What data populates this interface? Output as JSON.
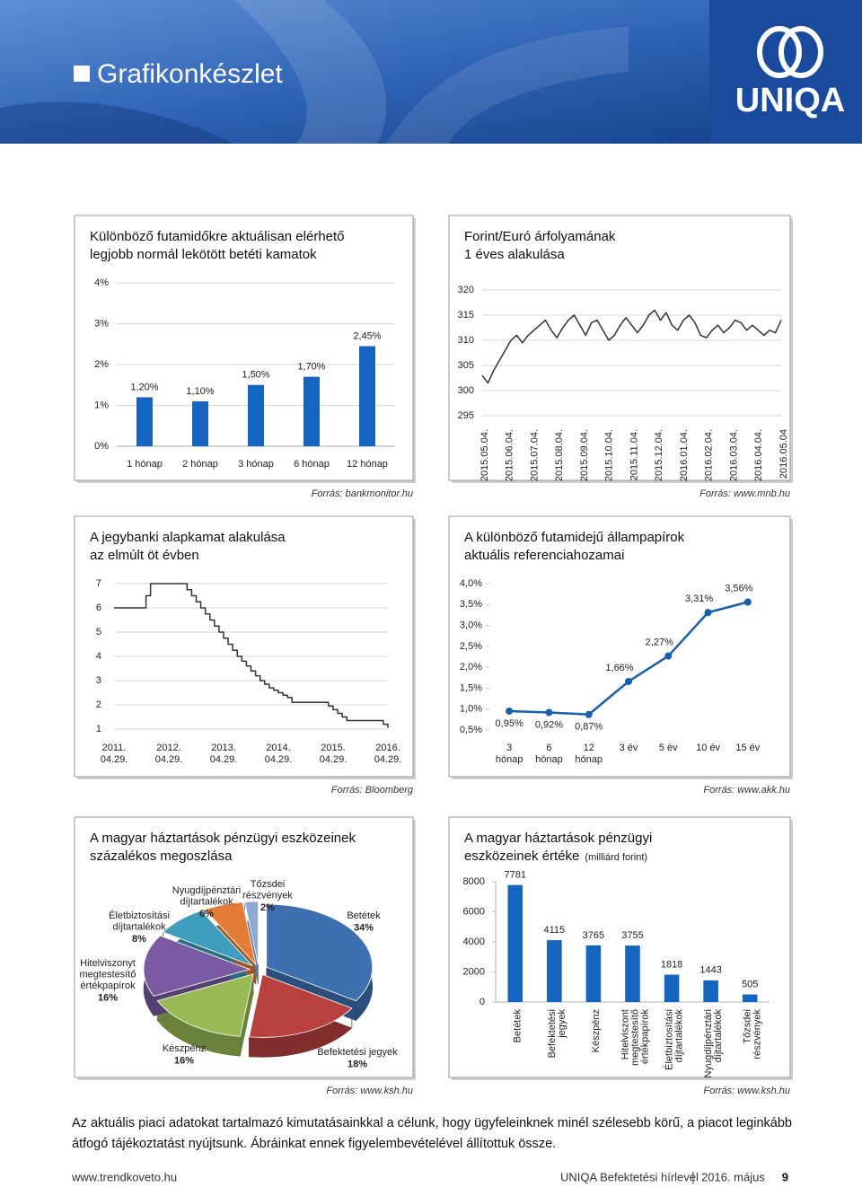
{
  "header": {
    "title": "Grafikonkészlet",
    "logo": "UNIQA"
  },
  "chart_data": [
    {
      "type": "bar",
      "title": [
        "Különböző futamidőkre aktuálisan elérhető",
        "legjobb normál lekötött betéti kamatok"
      ],
      "categories": [
        "1 hónap",
        "2 hónap",
        "3 hónap",
        "6 hónap",
        "12 hónap"
      ],
      "values": [
        1.2,
        1.1,
        1.5,
        1.7,
        2.45
      ],
      "value_labels": [
        "1,20%",
        "1,10%",
        "1,50%",
        "1,70%",
        "2,45%"
      ],
      "color": "#1565c0",
      "ylim": [
        0,
        4
      ],
      "yticks": [
        {
          "value": 0,
          "label": "0%"
        },
        {
          "value": 1,
          "label": "1%"
        },
        {
          "value": 2,
          "label": "2%"
        },
        {
          "value": 3,
          "label": "3%"
        },
        {
          "value": 4,
          "label": "4%"
        }
      ],
      "grid": true,
      "source": "Forrás: bankmonitor.hu"
    },
    {
      "type": "line",
      "title": [
        "Forint/Euró árfolyamának",
        "1 éves alakulása"
      ],
      "x_labels": [
        "2015.05.04.",
        "2015.06.04.",
        "2015.07.04.",
        "2015.08.04.",
        "2015.09.04.",
        "2015.10.04.",
        "2015.11.04.",
        "2015.12.04.",
        "2016.01.04.",
        "2016.02.04.",
        "2016.03.04.",
        "2016.04.04.",
        "2016.05.04"
      ],
      "values": [
        303,
        301.5,
        304,
        306,
        308,
        310,
        311,
        309.5,
        311,
        312,
        313,
        314,
        312,
        310.5,
        312.5,
        314,
        315,
        313,
        311,
        313.5,
        314,
        312,
        310,
        311,
        313,
        314.5,
        313,
        311.5,
        313,
        315,
        316,
        314,
        315.5,
        313,
        312,
        314,
        315,
        313.5,
        311,
        310.5,
        312,
        313,
        311.5,
        312.5,
        314,
        313.5,
        312,
        313,
        312,
        311,
        312,
        311.5,
        314
      ],
      "color": "#333333",
      "ylim": [
        295,
        320
      ],
      "yticks": [
        295,
        300,
        305,
        310,
        315,
        320
      ],
      "grid": true,
      "source": "Forrás: www.mnb.hu"
    },
    {
      "type": "line",
      "title": [
        "A jegybanki alapkamat alakulása",
        "az elmúlt öt évben"
      ],
      "x_labels": [
        [
          "2011.",
          "04.29."
        ],
        [
          "2012.",
          "04.29."
        ],
        [
          "2013.",
          "04.29."
        ],
        [
          "2014.",
          "04.29."
        ],
        [
          "2015.",
          "04.29."
        ],
        [
          "2016.",
          "04.29."
        ]
      ],
      "values": [
        6,
        6,
        6,
        6,
        6,
        6,
        6,
        6.5,
        7,
        7,
        7,
        7,
        7,
        7,
        7,
        7,
        6.75,
        6.5,
        6.25,
        6,
        5.75,
        5.5,
        5.25,
        5,
        4.75,
        4.5,
        4.25,
        4,
        3.8,
        3.6,
        3.4,
        3.2,
        3,
        2.85,
        2.7,
        2.6,
        2.5,
        2.4,
        2.3,
        2.1,
        2.1,
        2.1,
        2.1,
        2.1,
        2.1,
        2.1,
        2.1,
        1.95,
        1.8,
        1.65,
        1.5,
        1.35,
        1.35,
        1.35,
        1.35,
        1.35,
        1.35,
        1.35,
        1.35,
        1.2,
        1.05
      ],
      "step": true,
      "color": "#333333",
      "ylim": [
        1,
        7
      ],
      "yticks": [
        1,
        2,
        3,
        4,
        5,
        6,
        7
      ],
      "grid": true,
      "source": "Forrás: Bloomberg"
    },
    {
      "type": "line",
      "title": [
        "A különböző futamidejű állampapírok",
        "aktuális referenciahozamai"
      ],
      "categories": [
        [
          "3",
          "hónap"
        ],
        [
          "6",
          "hónap"
        ],
        [
          "12",
          "hónap"
        ],
        "3 év",
        "5 év",
        "10 év",
        "15 év"
      ],
      "values": [
        0.95,
        0.92,
        0.87,
        1.66,
        2.27,
        3.31,
        3.56
      ],
      "value_labels": [
        "0,95%",
        "0,92%",
        "0,87%",
        "1,66%",
        "2,27%",
        "3,31%",
        "3,56%"
      ],
      "markers": true,
      "color": "#1a5fa8",
      "ylim": [
        0.5,
        4
      ],
      "yticks": [
        {
          "value": 0.5,
          "label": "0,5%"
        },
        {
          "value": 1,
          "label": "1,0%"
        },
        {
          "value": 1.5,
          "label": "1,5%"
        },
        {
          "value": 2,
          "label": "2,0%"
        },
        {
          "value": 2.5,
          "label": "2,5%"
        },
        {
          "value": 3,
          "label": "3,0%"
        },
        {
          "value": 3.5,
          "label": "3,5%"
        },
        {
          "value": 4,
          "label": "4,0%"
        }
      ],
      "grid": false,
      "source": "Forrás: www.akk.hu"
    },
    {
      "type": "pie",
      "title": [
        "A magyar háztartások pénzügyi eszközeinek",
        "százalékos megoszlása"
      ],
      "categories": [
        "Betétek",
        [
          "Befektetési jegyek"
        ],
        "Készpénz",
        [
          "Hitelviszonyt",
          "megtestesítő",
          "értékpapírok"
        ],
        [
          "Életbiztosítási",
          "díjtartalékok"
        ],
        [
          "Nyugdíjpénztári",
          "díjtartalékok"
        ],
        [
          "Tőzsdei",
          "részvények"
        ]
      ],
      "values": [
        34,
        18,
        16,
        16,
        8,
        6,
        2
      ],
      "value_labels": [
        "34%",
        "18%",
        "16%",
        "16%",
        "8%",
        "6%",
        "2%"
      ],
      "colors": [
        "#3d6fb1",
        "#b8403f",
        "#98b954",
        "#7a5ba3",
        "#3c9dbd",
        "#e27c36",
        "#8ea9d6"
      ],
      "source": "Forrás: www.ksh.hu"
    },
    {
      "type": "bar",
      "title": [
        "A magyar háztartások pénzügyi",
        "eszközeinek értéke"
      ],
      "subtitle": "(milliárd forint)",
      "categories": [
        "Betétek",
        [
          "Befektetési",
          "jegyek"
        ],
        "Készpénz",
        [
          "Hitelviszont",
          "megtestesítő",
          "értékpapírok"
        ],
        [
          "Életbiztosítási",
          "díjtartalékok"
        ],
        [
          "Nyugdíjpénztári",
          "díjtartalékok"
        ],
        [
          "Tőzsdei",
          "részvények"
        ]
      ],
      "values": [
        7781,
        4115,
        3765,
        3755,
        1818,
        1443,
        505
      ],
      "color": "#1565c0",
      "ylim": [
        0,
        8000
      ],
      "yticks": [
        0,
        2000,
        4000,
        6000,
        8000
      ],
      "grid": false,
      "source": "Forrás: www.ksh.hu"
    }
  ],
  "paragraph": [
    "Az aktuális piaci adatokat tartalmazó kimutatásainkkal a célunk, hogy ügyfeleinknek minél szélesebb körű, a piacot leginkább",
    "átfogó tájékoztatást nyújtsunk. Ábráinkat ennek figyelembevételével állítottuk össze."
  ],
  "footer": {
    "url": "www.trendkoveto.hu",
    "publication": "UNIQA Befektetési hírlevél",
    "date": "2016. május",
    "page": "9"
  }
}
